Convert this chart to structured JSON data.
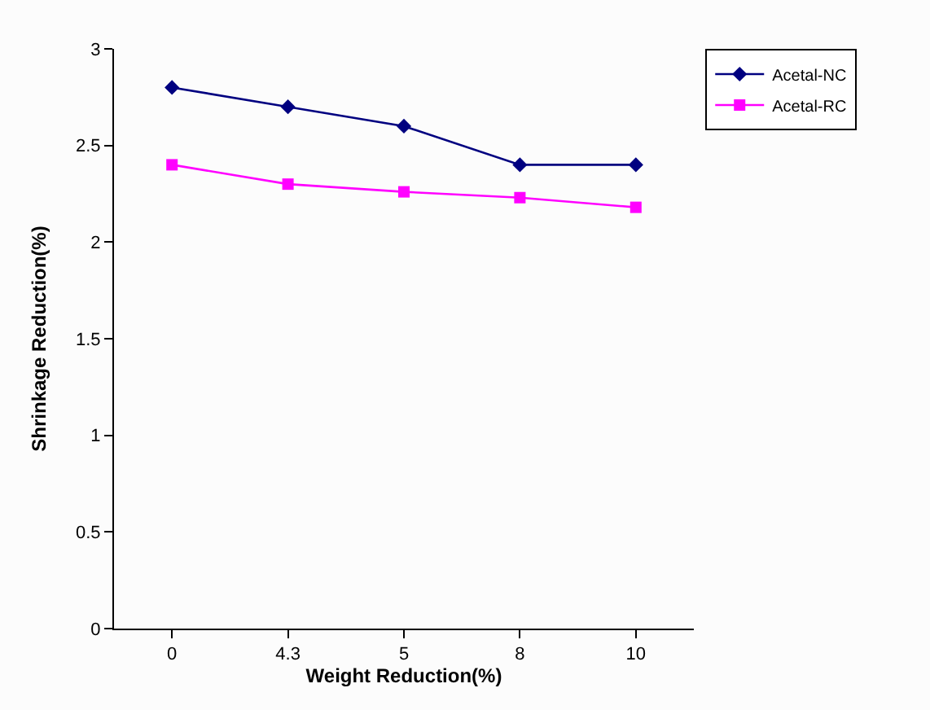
{
  "chart_data": {
    "type": "line",
    "xlabel": "Weight Reduction(%)",
    "ylabel": "Shrinkage Reduction(%)",
    "categories": [
      "0",
      "4.3",
      "5",
      "8",
      "10"
    ],
    "series": [
      {
        "name": "Acetal-NC",
        "color": "#000080",
        "marker": "diamond",
        "values": [
          2.8,
          2.7,
          2.6,
          2.4,
          2.4
        ]
      },
      {
        "name": "Acetal-RC",
        "color": "#ff00ff",
        "marker": "square",
        "values": [
          2.4,
          2.3,
          2.26,
          2.23,
          2.18
        ]
      }
    ],
    "ylim": [
      0,
      3
    ],
    "yticks": [
      0,
      0.5,
      1,
      1.5,
      2,
      2.5,
      3
    ],
    "grid": false,
    "legend": "top right",
    "line_style": "solid"
  }
}
